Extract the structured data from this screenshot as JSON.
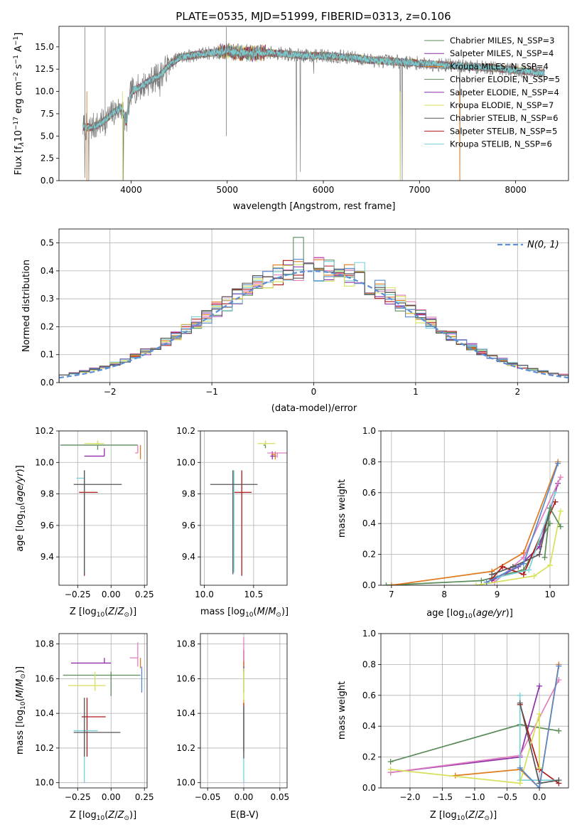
{
  "figure_title": "PLATE=0535, MJD=51999, FIBERID=0313, z=0.106",
  "colors": [
    "#5b8c5a",
    "#8e2fa8",
    "#e07a1f",
    "#5b8c5a",
    "#8e2fa8",
    "#d6e05a",
    "#555555",
    "#b01818",
    "#79d1d6"
  ],
  "chart_data": [
    {
      "id": "spectrum",
      "type": "line",
      "xlabel": "wavelength [Angstrom, rest frame]",
      "ylabel": "Flux [f_λ 10^-17 erg cm^-2 s^-1 A^-1]",
      "xlim": [
        3250,
        8550
      ],
      "ylim": [
        0,
        17.3
      ],
      "xticks": [
        4000,
        5000,
        6000,
        7000,
        8000
      ],
      "yticks": [
        0.0,
        2.5,
        5.0,
        7.5,
        10.0,
        12.5,
        15.0
      ],
      "grid": false,
      "legend_position": "top-right",
      "data_x_range": [
        3500,
        8300
      ],
      "observed_spectrum_knots": {
        "x": [
          3500,
          3600,
          3700,
          3800,
          3900,
          3950,
          4000,
          4100,
          4200,
          4300,
          4400,
          4500,
          4800,
          5000,
          5200,
          5500,
          5800,
          6000,
          6300,
          6500,
          6800,
          7200,
          7500,
          7800,
          8000,
          8300
        ],
        "y": [
          6.0,
          6.0,
          6.5,
          7.5,
          8.2,
          6.5,
          10.0,
          10.5,
          11.2,
          11.8,
          13.0,
          13.8,
          14.3,
          14.5,
          14.3,
          14.3,
          14.0,
          14.0,
          13.8,
          13.5,
          13.3,
          13.0,
          12.8,
          12.6,
          12.4,
          12.0
        ]
      },
      "series": [
        {
          "name": "Chabrier MILES, N_SSP=3",
          "color": "#5b8c5a"
        },
        {
          "name": "Salpeter MILES, N_SSP=4",
          "color": "#8e2fa8"
        },
        {
          "name": "Kroupa MILES, N_SSP=4",
          "color": "#e07a1f"
        },
        {
          "name": "Chabrier ELODIE, N_SSP=5",
          "color": "#5b8c5a"
        },
        {
          "name": "Salpeter ELODIE, N_SSP=4",
          "color": "#8e2fa8"
        },
        {
          "name": "Kroupa ELODIE, N_SSP=7",
          "color": "#d6e05a"
        },
        {
          "name": "Chabrier STELIB, N_SSP=6",
          "color": "#555555"
        },
        {
          "name": "Salpeter STELIB, N_SSP=5",
          "color": "#b01818"
        },
        {
          "name": "Kroupa STELIB, N_SSP=6",
          "color": "#79d1d6"
        }
      ]
    },
    {
      "id": "residuals",
      "type": "histogram",
      "xlabel": "(data-model)/error",
      "ylabel": "Normed distribution",
      "xlim": [
        -2.5,
        2.5
      ],
      "ylim": [
        0,
        0.55
      ],
      "xticks": [
        -2,
        -1,
        0,
        1,
        2
      ],
      "yticks": [
        0.0,
        0.1,
        0.2,
        0.3,
        0.4,
        0.5
      ],
      "grid": true,
      "legend_position": "top-right",
      "legend_label": "N(0, 1)",
      "bin_width": 0.1,
      "hist_colors": [
        "#5b8c5a",
        "#8e2fa8",
        "#e07a1f",
        "#e080c0",
        "#b01818",
        "#79d1d6",
        "#d6e05a",
        "#5588cc",
        "#555555"
      ],
      "peak_bars": [
        {
          "x": -0.2,
          "height": 0.52,
          "color": "#5b8c5a"
        },
        {
          "x": 0.0,
          "height": 0.44,
          "color": "#e07a1f"
        },
        {
          "x": 0.4,
          "height": 0.43,
          "color": "#79d1d6"
        }
      ]
    },
    {
      "id": "age_vs_Z",
      "type": "errorbar",
      "xlabel": "Z [log10(Z/Z_sun)]",
      "ylabel": "age [log10(age/yr)]",
      "xlim": [
        -0.39,
        0.27
      ],
      "ylim": [
        9.22,
        10.2
      ],
      "xticks": [
        -0.25,
        0.0,
        0.25
      ],
      "yticks": [
        9.4,
        9.6,
        9.8,
        10.0,
        10.2
      ],
      "grid": true,
      "points": [
        {
          "x": -0.1,
          "y": 10.11,
          "xerr": [
            0.28,
            0.3
          ],
          "yerr": [
            0.03,
            0.02
          ],
          "color": "#5b8c5a"
        },
        {
          "x": -0.05,
          "y": 10.04,
          "xerr": [
            0.15,
            0.0
          ],
          "yerr": [
            0.0,
            0.05
          ],
          "color": "#8e2fa8"
        },
        {
          "x": 0.22,
          "y": 10.11,
          "xerr": [
            0.0,
            0.0
          ],
          "yerr": [
            0.09,
            0.0
          ],
          "color": "#e07a1f"
        },
        {
          "x": 0.2,
          "y": 10.06,
          "xerr": [
            0.02,
            0.0
          ],
          "yerr": [
            0.0,
            0.05
          ],
          "color": "#e080c0"
        },
        {
          "x": -0.2,
          "y": 9.81,
          "xerr": [
            0.04,
            0.1
          ],
          "yerr": [
            0.53,
            0.14
          ],
          "color": "#b01818"
        },
        {
          "x": -0.2,
          "y": 9.9,
          "xerr": [
            0.06,
            0.0
          ],
          "yerr": [
            0.6,
            0.05
          ],
          "color": "#79d1d6"
        },
        {
          "x": -0.1,
          "y": 10.12,
          "xerr": [
            0.1,
            0.05
          ],
          "yerr": [
            0.01,
            0.02
          ],
          "color": "#d6e05a"
        },
        {
          "x": -0.2,
          "y": 9.86,
          "xerr": [
            0.08,
            0.28
          ],
          "yerr": [
            0.57,
            0.09
          ],
          "color": "#555555"
        }
      ]
    },
    {
      "id": "age_vs_mass",
      "type": "errorbar",
      "xlabel": "mass [log10(M/M_sun)]",
      "ylabel": "",
      "xlim": [
        9.96,
        10.84
      ],
      "ylim": [
        9.22,
        10.2
      ],
      "xticks": [
        10.0,
        10.5
      ],
      "yticks": [
        9.4,
        9.6,
        9.8,
        10.0,
        10.2
      ],
      "grid": true,
      "points": [
        {
          "x": 10.62,
          "y": 10.11,
          "xerr": [
            0.02,
            0.0
          ],
          "yerr": [
            0.02,
            0.02
          ],
          "color": "#5b8c5a"
        },
        {
          "x": 10.69,
          "y": 10.04,
          "xerr": [
            0.02,
            0.04
          ],
          "yerr": [
            0.02,
            0.03
          ],
          "color": "#8e2fa8"
        },
        {
          "x": 10.72,
          "y": 10.05,
          "xerr": [
            0.04,
            0.0
          ],
          "yerr": [
            0.03,
            0.02
          ],
          "color": "#e07a1f"
        },
        {
          "x": 10.74,
          "y": 10.06,
          "xerr": [
            0.1,
            0.1
          ],
          "yerr": [
            0.03,
            0.0
          ],
          "color": "#e080c0"
        },
        {
          "x": 10.38,
          "y": 9.81,
          "xerr": [
            0.08,
            0.1
          ],
          "yerr": [
            0.53,
            0.14
          ],
          "color": "#b01818"
        },
        {
          "x": 10.3,
          "y": 9.9,
          "xerr": [
            0.0,
            0.0
          ],
          "yerr": [
            0.6,
            0.05
          ],
          "color": "#79d1d6"
        },
        {
          "x": 10.62,
          "y": 10.12,
          "xerr": [
            0.08,
            0.1
          ],
          "yerr": [
            0.01,
            0.02
          ],
          "color": "#d6e05a"
        },
        {
          "x": 10.29,
          "y": 9.86,
          "xerr": [
            0.23,
            0.25
          ],
          "yerr": [
            0.57,
            0.09
          ],
          "color": "#555555"
        }
      ]
    },
    {
      "id": "weight_vs_age",
      "type": "line",
      "xlabel": "age [log10(age/yr)]",
      "ylabel": "mass weight",
      "xlim": [
        6.8,
        10.35
      ],
      "ylim": [
        0.0,
        1.0
      ],
      "xticks": [
        7,
        8,
        9,
        10
      ],
      "yticks": [
        0.0,
        0.2,
        0.4,
        0.6,
        0.8,
        1.0
      ],
      "grid": true,
      "series": [
        {
          "color": "#5b8c5a",
          "x": [
            6.9,
            8.7,
            9.5,
            10.0
          ],
          "y": [
            0.0,
            0.03,
            0.1,
            0.4
          ]
        },
        {
          "color": "#8e2fa8",
          "x": [
            8.9,
            9.4,
            9.8,
            10.15
          ],
          "y": [
            0.03,
            0.12,
            0.25,
            0.66
          ]
        },
        {
          "color": "#e07a1f",
          "x": [
            7.0,
            8.9,
            9.5,
            10.15
          ],
          "y": [
            0.0,
            0.09,
            0.21,
            0.8
          ]
        },
        {
          "color": "#e080c0",
          "x": [
            8.95,
            9.5,
            10.2
          ],
          "y": [
            0.02,
            0.18,
            0.7
          ]
        },
        {
          "color": "#b01818",
          "x": [
            8.9,
            9.1,
            9.5,
            10.1
          ],
          "y": [
            0.04,
            0.12,
            0.07,
            0.54
          ]
        },
        {
          "color": "#79d1d6",
          "x": [
            9.0,
            9.6,
            10.1
          ],
          "y": [
            0.05,
            0.1,
            0.6
          ]
        },
        {
          "color": "#d6e05a",
          "x": [
            8.6,
            9.7,
            10.0,
            10.2
          ],
          "y": [
            0.0,
            0.06,
            0.13,
            0.48
          ]
        },
        {
          "color": "#555555",
          "x": [
            8.9,
            9.3,
            9.8,
            10.0
          ],
          "y": [
            0.07,
            0.12,
            0.2,
            0.5
          ]
        },
        {
          "color": "#5588cc",
          "x": [
            8.8,
            9.5,
            10.15
          ],
          "y": [
            0.02,
            0.14,
            0.79
          ]
        },
        {
          "color": "#5b8c5a",
          "x": [
            9.9,
            10.0,
            10.2
          ],
          "y": [
            0.18,
            0.5,
            0.38
          ]
        }
      ]
    },
    {
      "id": "mass_vs_Z",
      "type": "errorbar",
      "xlabel": "Z [log10(Z/Z_sun)]",
      "ylabel": "mass [log10(M/M_sun)]",
      "xlim": [
        -0.39,
        0.27
      ],
      "ylim": [
        9.97,
        10.86
      ],
      "xticks": [
        -0.25,
        0.0,
        0.25
      ],
      "yticks": [
        10.0,
        10.2,
        10.4,
        10.6,
        10.8
      ],
      "grid": true,
      "points": [
        {
          "x": 0.0,
          "y": 10.62,
          "xerr": [
            0.36,
            0.22
          ],
          "yerr": [
            0.12,
            0.02
          ],
          "color": "#5b8c5a"
        },
        {
          "x": -0.05,
          "y": 10.69,
          "xerr": [
            0.25,
            0.05
          ],
          "yerr": [
            0.0,
            0.03
          ],
          "color": "#8e2fa8"
        },
        {
          "x": 0.22,
          "y": 10.66,
          "xerr": [
            0.0,
            0.0
          ],
          "yerr": [
            0.0,
            0.06
          ],
          "color": "#e07a1f"
        },
        {
          "x": 0.2,
          "y": 10.72,
          "xerr": [
            0.06,
            0.0
          ],
          "yerr": [
            0.05,
            0.09
          ],
          "color": "#e080c0"
        },
        {
          "x": -0.18,
          "y": 10.38,
          "xerr": [
            0.04,
            0.14
          ],
          "yerr": [
            0.23,
            0.11
          ],
          "color": "#b01818"
        },
        {
          "x": -0.2,
          "y": 10.3,
          "xerr": [
            0.08,
            0.1
          ],
          "yerr": [
            0.3,
            0.0
          ],
          "color": "#79d1d6"
        },
        {
          "x": -0.12,
          "y": 10.56,
          "xerr": [
            0.2,
            0.08
          ],
          "yerr": [
            0.03,
            0.08
          ],
          "color": "#d6e05a"
        },
        {
          "x": -0.2,
          "y": 10.29,
          "xerr": [
            0.08,
            0.27
          ],
          "yerr": [
            0.14,
            0.2
          ],
          "color": "#555555"
        },
        {
          "x": 0.23,
          "y": 10.62,
          "xerr": [
            0.0,
            0.0
          ],
          "yerr": [
            0.1,
            0.05
          ],
          "color": "#5588cc"
        }
      ]
    },
    {
      "id": "mass_vs_EBV",
      "type": "errorbar",
      "xlabel": "E(B-V)",
      "ylabel": "",
      "xlim": [
        -0.06,
        0.06
      ],
      "ylim": [
        9.97,
        10.86
      ],
      "xticks": [
        -0.05,
        0.0,
        0.05
      ],
      "yticks": [
        10.0,
        10.2,
        10.4,
        10.6,
        10.8
      ],
      "grid": true,
      "points": [
        {
          "x": 0.0,
          "y": 10.62,
          "xerr": [
            0.0,
            0.0
          ],
          "yerr": [
            0.1,
            0.08
          ],
          "color": "#5b8c5a"
        },
        {
          "x": 0.0,
          "y": 10.69,
          "xerr": [
            0.0,
            0.0
          ],
          "yerr": [
            0.05,
            0.07
          ],
          "color": "#8e2fa8"
        },
        {
          "x": 0.0,
          "y": 10.72,
          "xerr": [
            0.0,
            0.0
          ],
          "yerr": [
            0.05,
            0.05
          ],
          "color": "#e07a1f"
        },
        {
          "x": 0.0,
          "y": 10.74,
          "xerr": [
            0.0,
            0.0
          ],
          "yerr": [
            0.04,
            0.1
          ],
          "color": "#e080c0"
        },
        {
          "x": 0.0,
          "y": 10.38,
          "xerr": [
            0.0,
            0.0
          ],
          "yerr": [
            0.2,
            0.1
          ],
          "color": "#b01818"
        },
        {
          "x": 0.0,
          "y": 10.3,
          "xerr": [
            0.0,
            0.0
          ],
          "yerr": [
            0.3,
            0.1
          ],
          "color": "#79d1d6"
        },
        {
          "x": 0.0,
          "y": 10.56,
          "xerr": [
            0.0,
            0.0
          ],
          "yerr": [
            0.1,
            0.1
          ],
          "color": "#d6e05a"
        },
        {
          "x": 0.0,
          "y": 10.29,
          "xerr": [
            0.0,
            0.0
          ],
          "yerr": [
            0.15,
            0.15
          ],
          "color": "#555555"
        }
      ]
    },
    {
      "id": "weight_vs_Z",
      "type": "line",
      "xlabel": "Z [log10(Z/Z_sun)]",
      "ylabel": "mass weight",
      "xlim": [
        -2.45,
        0.45
      ],
      "ylim": [
        0.0,
        1.0
      ],
      "xticks": [
        -2.0,
        -1.5,
        -1.0,
        -0.5,
        0.0
      ],
      "yticks": [
        0.0,
        0.2,
        0.4,
        0.6,
        0.8,
        1.0
      ],
      "grid": true,
      "series": [
        {
          "color": "#5b8c5a",
          "x": [
            -2.3,
            -0.3,
            0.3
          ],
          "y": [
            0.17,
            0.41,
            0.37
          ]
        },
        {
          "color": "#8e2fa8",
          "x": [
            -2.3,
            -0.3,
            0.0
          ],
          "y": [
            0.1,
            0.2,
            0.66
          ]
        },
        {
          "color": "#e07a1f",
          "x": [
            -1.3,
            -0.3,
            0.0,
            0.3
          ],
          "y": [
            0.08,
            0.12,
            0.0,
            0.8
          ]
        },
        {
          "color": "#e080c0",
          "x": [
            -2.3,
            -0.3,
            0.3
          ],
          "y": [
            0.1,
            0.21,
            0.7
          ]
        },
        {
          "color": "#b01818",
          "x": [
            -0.3,
            0.0,
            0.3
          ],
          "y": [
            0.54,
            0.12,
            0.03
          ]
        },
        {
          "color": "#79d1d6",
          "x": [
            -0.3,
            -0.3,
            0.3
          ],
          "y": [
            0.6,
            0.05,
            0.05
          ]
        },
        {
          "color": "#d6e05a",
          "x": [
            -2.3,
            -0.3,
            0.0,
            0.0
          ],
          "y": [
            0.12,
            0.03,
            0.48,
            0.13
          ]
        },
        {
          "color": "#555555",
          "x": [
            -0.3,
            0.0,
            0.3
          ],
          "y": [
            0.55,
            0.03,
            0.05
          ]
        },
        {
          "color": "#5588cc",
          "x": [
            -0.3,
            0.0,
            0.3
          ],
          "y": [
            0.13,
            0.0,
            0.79
          ]
        }
      ]
    }
  ]
}
